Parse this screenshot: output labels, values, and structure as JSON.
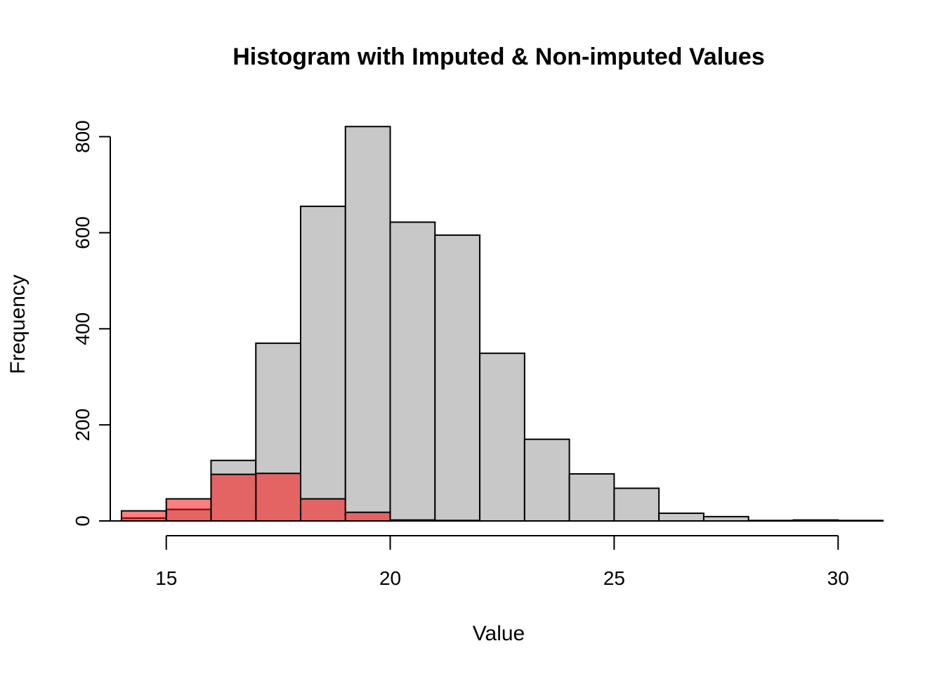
{
  "chart_data": {
    "type": "bar",
    "title": "Histogram with Imputed & Non-imputed Values",
    "xlabel": "Value",
    "ylabel": "Frequency",
    "xlim": [
      13.75,
      31
    ],
    "ylim": [
      0,
      820
    ],
    "x_ticks": [
      15,
      20,
      25,
      30
    ],
    "y_ticks": [
      0,
      200,
      400,
      600,
      800
    ],
    "series": [
      {
        "color": "#c8c8c8",
        "bins": [
          {
            "x0": 14,
            "x1": 15,
            "count": 6
          },
          {
            "x0": 15,
            "x1": 16,
            "count": 24
          },
          {
            "x0": 16,
            "x1": 17,
            "count": 126
          },
          {
            "x0": 17,
            "x1": 18,
            "count": 370
          },
          {
            "x0": 18,
            "x1": 19,
            "count": 655
          },
          {
            "x0": 19,
            "x1": 20,
            "count": 821
          },
          {
            "x0": 20,
            "x1": 21,
            "count": 622
          },
          {
            "x0": 21,
            "x1": 22,
            "count": 595
          },
          {
            "x0": 22,
            "x1": 23,
            "count": 349
          },
          {
            "x0": 23,
            "x1": 24,
            "count": 170
          },
          {
            "x0": 24,
            "x1": 25,
            "count": 98
          },
          {
            "x0": 25,
            "x1": 26,
            "count": 68
          },
          {
            "x0": 26,
            "x1": 27,
            "count": 16
          },
          {
            "x0": 27,
            "x1": 28,
            "count": 9
          },
          {
            "x0": 28,
            "x1": 29,
            "count": 1
          },
          {
            "x0": 29,
            "x1": 30,
            "count": 2
          },
          {
            "x0": 30,
            "x1": 31,
            "count": 1
          }
        ]
      },
      {
        "color": "#ff000080",
        "bins": [
          {
            "x0": 14,
            "x1": 15,
            "count": 21
          },
          {
            "x0": 15,
            "x1": 16,
            "count": 46
          },
          {
            "x0": 16,
            "x1": 17,
            "count": 97
          },
          {
            "x0": 17,
            "x1": 18,
            "count": 99
          },
          {
            "x0": 18,
            "x1": 19,
            "count": 46
          },
          {
            "x0": 19,
            "x1": 20,
            "count": 18
          },
          {
            "x0": 20,
            "x1": 21,
            "count": 2
          },
          {
            "x0": 21,
            "x1": 22,
            "count": 1
          },
          {
            "x0": 22,
            "x1": 23,
            "count": 0
          }
        ]
      }
    ]
  }
}
